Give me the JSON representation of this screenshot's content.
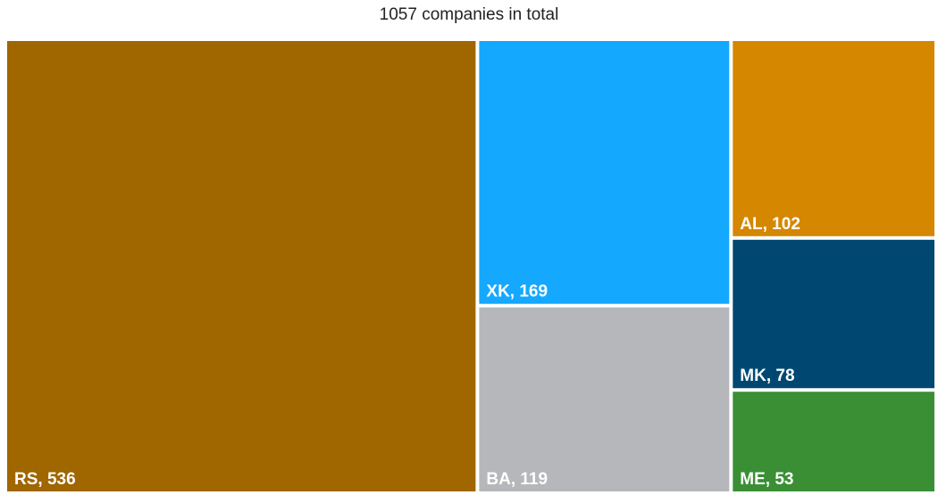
{
  "chart_data": {
    "type": "treemap",
    "title": "1057 companies in total",
    "total": 1057,
    "items": [
      {
        "name": "RS",
        "value": 536,
        "label": "RS, 536",
        "color": "#a06600"
      },
      {
        "name": "XK",
        "value": 169,
        "label": "XK, 169",
        "color": "#14a8ff"
      },
      {
        "name": "BA",
        "value": 119,
        "label": "BA, 119",
        "color": "#b6b7ba"
      },
      {
        "name": "AL",
        "value": 102,
        "label": "AL, 102",
        "color": "#d58700"
      },
      {
        "name": "MK",
        "value": 78,
        "label": "MK, 78",
        "color": "#004872"
      },
      {
        "name": "ME",
        "value": 53,
        "label": "ME, 53",
        "color": "#3a8f35"
      }
    ]
  }
}
